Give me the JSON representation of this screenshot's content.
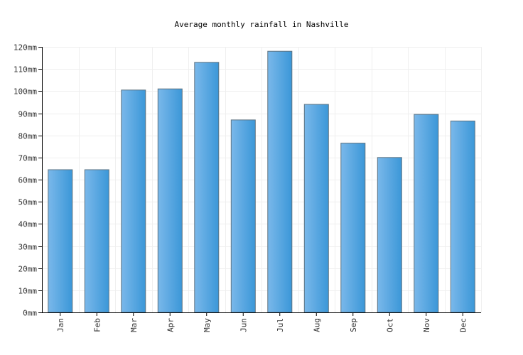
{
  "chart_data": {
    "type": "bar",
    "title": "Average monthly rainfall in Nashville",
    "xlabel": "",
    "ylabel": "",
    "unit": "mm",
    "categories": [
      "Jan",
      "Feb",
      "Mar",
      "Apr",
      "May",
      "Jun",
      "Jul",
      "Aug",
      "Sep",
      "Oct",
      "Nov",
      "Dec"
    ],
    "values": [
      64.5,
      64.5,
      100.5,
      101,
      113,
      87,
      118,
      94,
      76.5,
      70,
      89.5,
      86.5
    ],
    "ylim": [
      0,
      120
    ],
    "yticks": [
      0,
      10,
      20,
      30,
      40,
      50,
      60,
      70,
      80,
      90,
      100,
      110,
      120
    ],
    "ytick_labels": [
      "0mm",
      "10mm",
      "20mm",
      "30mm",
      "40mm",
      "50mm",
      "60mm",
      "70mm",
      "80mm",
      "90mm",
      "100mm",
      "110mm",
      "120mm"
    ],
    "grid": true,
    "legend": "none",
    "colors": {
      "bar_light": "#7ab8ea",
      "bar_dark": "#3b97d8",
      "bar_border": "#5f7380",
      "grid": "#efefef",
      "axis": "#000000"
    }
  }
}
